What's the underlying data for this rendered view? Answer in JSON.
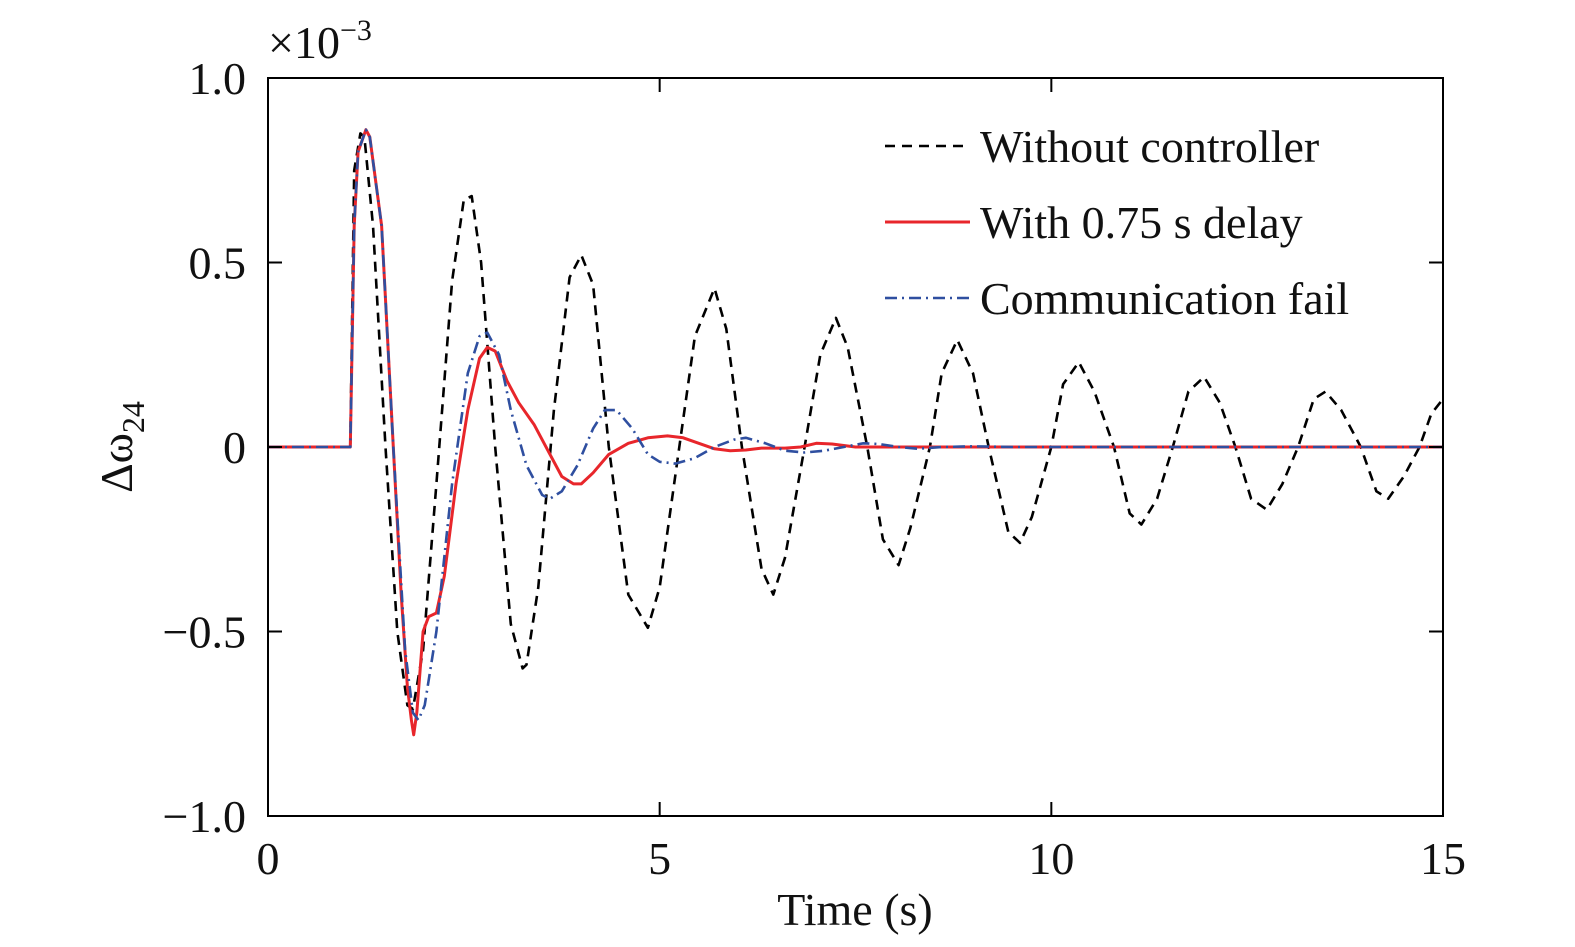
{
  "chart_data": {
    "type": "line",
    "title": "",
    "xlabel": "Time (s)",
    "ylabel": {
      "main": "Δω",
      "sub": "24"
    },
    "y_multiplier": {
      "base": "×10",
      "exp": "−3"
    },
    "xlim": [
      0,
      15
    ],
    "ylim": [
      -1.0,
      1.0
    ],
    "xticks": [
      0,
      5,
      10,
      15
    ],
    "xtick_labels": [
      "0",
      "5",
      "10",
      "15"
    ],
    "yticks": [
      -1.0,
      -0.5,
      0,
      0.5,
      1.0
    ],
    "ytick_labels": [
      "−1.0",
      "−0.5",
      "0",
      "0.5",
      "1.0"
    ],
    "grid": false,
    "legend_position": "top-right",
    "series": [
      {
        "name": "Without controller",
        "color": "#000000",
        "dash": "dashed",
        "points": [
          [
            0,
            0
          ],
          [
            1.05,
            0
          ],
          [
            1.1,
            0.75
          ],
          [
            1.18,
            0.85
          ],
          [
            1.23,
            0.84
          ],
          [
            1.34,
            0.6
          ],
          [
            1.5,
            0.0
          ],
          [
            1.65,
            -0.5
          ],
          [
            1.78,
            -0.7
          ],
          [
            1.85,
            -0.71
          ],
          [
            1.98,
            -0.55
          ],
          [
            2.15,
            -0.1
          ],
          [
            2.35,
            0.45
          ],
          [
            2.5,
            0.67
          ],
          [
            2.6,
            0.68
          ],
          [
            2.72,
            0.5
          ],
          [
            2.9,
            0.0
          ],
          [
            3.1,
            -0.48
          ],
          [
            3.25,
            -0.6
          ],
          [
            3.3,
            -0.59
          ],
          [
            3.45,
            -0.38
          ],
          [
            3.65,
            0.1
          ],
          [
            3.85,
            0.46
          ],
          [
            4.0,
            0.52
          ],
          [
            4.15,
            0.44
          ],
          [
            4.35,
            0.0
          ],
          [
            4.6,
            -0.4
          ],
          [
            4.85,
            -0.49
          ],
          [
            5.0,
            -0.38
          ],
          [
            5.25,
            0.0
          ],
          [
            5.45,
            0.3
          ],
          [
            5.7,
            0.43
          ],
          [
            5.85,
            0.32
          ],
          [
            6.05,
            0.0
          ],
          [
            6.3,
            -0.33
          ],
          [
            6.45,
            -0.4
          ],
          [
            6.6,
            -0.3
          ],
          [
            6.85,
            0.0
          ],
          [
            7.05,
            0.25
          ],
          [
            7.25,
            0.35
          ],
          [
            7.4,
            0.27
          ],
          [
            7.65,
            0.0
          ],
          [
            7.85,
            -0.25
          ],
          [
            8.05,
            -0.32
          ],
          [
            8.2,
            -0.22
          ],
          [
            8.45,
            0.0
          ],
          [
            8.6,
            0.2
          ],
          [
            8.8,
            0.29
          ],
          [
            9.0,
            0.2
          ],
          [
            9.2,
            0.0
          ],
          [
            9.45,
            -0.23
          ],
          [
            9.6,
            -0.26
          ],
          [
            9.75,
            -0.19
          ],
          [
            10.0,
            0.0
          ],
          [
            10.15,
            0.17
          ],
          [
            10.35,
            0.23
          ],
          [
            10.55,
            0.15
          ],
          [
            10.8,
            0.0
          ],
          [
            11.0,
            -0.18
          ],
          [
            11.15,
            -0.21
          ],
          [
            11.35,
            -0.14
          ],
          [
            11.55,
            0.0
          ],
          [
            11.75,
            0.15
          ],
          [
            11.95,
            0.19
          ],
          [
            12.15,
            0.12
          ],
          [
            12.35,
            0.0
          ],
          [
            12.55,
            -0.14
          ],
          [
            12.75,
            -0.17
          ],
          [
            12.95,
            -0.1
          ],
          [
            13.15,
            0.0
          ],
          [
            13.35,
            0.13
          ],
          [
            13.5,
            0.15
          ],
          [
            13.7,
            0.1
          ],
          [
            13.95,
            0.0
          ],
          [
            14.15,
            -0.12
          ],
          [
            14.3,
            -0.14
          ],
          [
            14.5,
            -0.08
          ],
          [
            14.7,
            0.0
          ],
          [
            14.85,
            0.09
          ],
          [
            15.0,
            0.13
          ]
        ]
      },
      {
        "name": "With 0.75 s delay",
        "color": "#e8262b",
        "dash": "solid",
        "points": [
          [
            0,
            0
          ],
          [
            1.05,
            0
          ],
          [
            1.1,
            0.6
          ],
          [
            1.15,
            0.8
          ],
          [
            1.25,
            0.86
          ],
          [
            1.3,
            0.84
          ],
          [
            1.45,
            0.6
          ],
          [
            1.6,
            0.0
          ],
          [
            1.7,
            -0.4
          ],
          [
            1.78,
            -0.65
          ],
          [
            1.83,
            -0.74
          ],
          [
            1.86,
            -0.78
          ],
          [
            1.9,
            -0.72
          ],
          [
            1.98,
            -0.5
          ],
          [
            2.05,
            -0.46
          ],
          [
            2.15,
            -0.45
          ],
          [
            2.25,
            -0.35
          ],
          [
            2.4,
            -0.1
          ],
          [
            2.55,
            0.1
          ],
          [
            2.7,
            0.24
          ],
          [
            2.8,
            0.27
          ],
          [
            2.9,
            0.26
          ],
          [
            3.05,
            0.18
          ],
          [
            3.2,
            0.12
          ],
          [
            3.4,
            0.06
          ],
          [
            3.6,
            -0.02
          ],
          [
            3.75,
            -0.08
          ],
          [
            3.9,
            -0.1
          ],
          [
            4.0,
            -0.1
          ],
          [
            4.15,
            -0.07
          ],
          [
            4.35,
            -0.02
          ],
          [
            4.6,
            0.01
          ],
          [
            4.85,
            0.025
          ],
          [
            5.1,
            0.03
          ],
          [
            5.3,
            0.025
          ],
          [
            5.5,
            0.01
          ],
          [
            5.7,
            -0.005
          ],
          [
            5.9,
            -0.01
          ],
          [
            6.1,
            -0.008
          ],
          [
            6.3,
            -0.003
          ],
          [
            6.6,
            -0.003
          ],
          [
            6.8,
            0.0
          ],
          [
            7.0,
            0.01
          ],
          [
            7.2,
            0.008
          ],
          [
            7.5,
            0.0
          ],
          [
            8.0,
            0.0
          ],
          [
            9.0,
            0.0
          ],
          [
            15.0,
            0.0
          ]
        ]
      },
      {
        "name": "Communication fail",
        "color": "#2f4fa0",
        "dash": "dashdot",
        "points": [
          [
            0,
            0
          ],
          [
            1.05,
            0
          ],
          [
            1.1,
            0.6
          ],
          [
            1.15,
            0.8
          ],
          [
            1.25,
            0.86
          ],
          [
            1.3,
            0.84
          ],
          [
            1.45,
            0.6
          ],
          [
            1.6,
            0.0
          ],
          [
            1.75,
            -0.55
          ],
          [
            1.85,
            -0.72
          ],
          [
            1.92,
            -0.74
          ],
          [
            2.0,
            -0.7
          ],
          [
            2.15,
            -0.5
          ],
          [
            2.35,
            -0.1
          ],
          [
            2.55,
            0.2
          ],
          [
            2.7,
            0.3
          ],
          [
            2.8,
            0.31
          ],
          [
            2.95,
            0.25
          ],
          [
            3.1,
            0.1
          ],
          [
            3.3,
            -0.05
          ],
          [
            3.5,
            -0.13
          ],
          [
            3.6,
            -0.14
          ],
          [
            3.75,
            -0.12
          ],
          [
            3.95,
            -0.05
          ],
          [
            4.15,
            0.05
          ],
          [
            4.3,
            0.1
          ],
          [
            4.45,
            0.1
          ],
          [
            4.65,
            0.05
          ],
          [
            4.85,
            -0.02
          ],
          [
            5.0,
            -0.04
          ],
          [
            5.2,
            -0.045
          ],
          [
            5.45,
            -0.03
          ],
          [
            5.7,
            0.0
          ],
          [
            5.95,
            0.02
          ],
          [
            6.1,
            0.025
          ],
          [
            6.35,
            0.01
          ],
          [
            6.6,
            -0.01
          ],
          [
            6.85,
            -0.015
          ],
          [
            7.1,
            -0.01
          ],
          [
            7.35,
            0.0
          ],
          [
            7.6,
            0.01
          ],
          [
            7.8,
            0.008
          ],
          [
            8.05,
            0.0
          ],
          [
            8.3,
            -0.005
          ],
          [
            8.6,
            0.0
          ],
          [
            9.0,
            0.002
          ],
          [
            9.5,
            0.0
          ],
          [
            15.0,
            0.0
          ]
        ]
      }
    ]
  }
}
